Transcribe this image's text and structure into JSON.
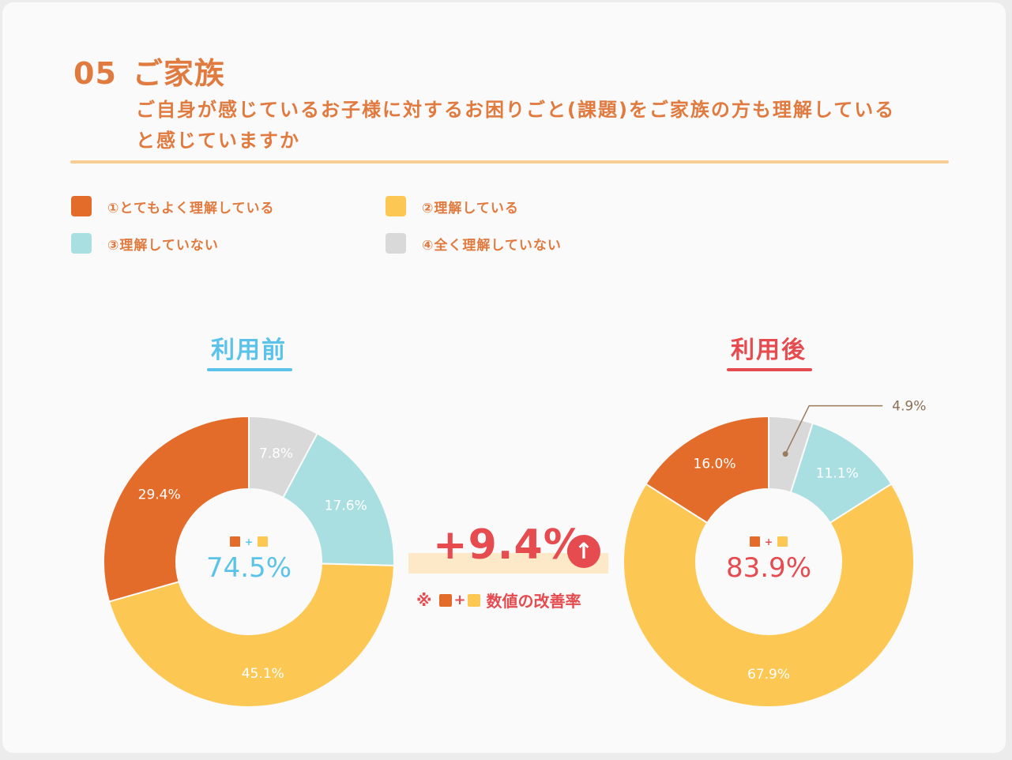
{
  "header": {
    "number": "05",
    "title": "ご家族",
    "question": "ご自身が感じているお子様に対するお困りごと(課題)をご家族の方も理解していると感じていますか"
  },
  "colors": {
    "accent_orange": "#e07a3f",
    "before": "#5bc3e9",
    "after": "#e54b4f"
  },
  "legend": [
    {
      "label": "①とてもよく理解している",
      "color": "#e36c2b"
    },
    {
      "label": "②理解している",
      "color": "#fcc853"
    },
    {
      "label": "③理解していない",
      "color": "#a9dfe0"
    },
    {
      "label": "④全く理解していない",
      "color": "#d9d9d9"
    }
  ],
  "chart_data": [
    {
      "type": "pie",
      "title": "利用前",
      "categories": [
        "①とてもよく理解している",
        "②理解している",
        "③理解していない",
        "④全く理解していない"
      ],
      "values": [
        29.4,
        45.1,
        17.6,
        7.8
      ],
      "value_labels": [
        "29.4%",
        "45.1%",
        "17.6%",
        "7.8%"
      ],
      "colors": [
        "#e36c2b",
        "#fcc853",
        "#a9dfe0",
        "#d9d9d9"
      ],
      "center_total": "74.5%",
      "center_color": "#5bc3e9"
    },
    {
      "type": "pie",
      "title": "利用後",
      "categories": [
        "①とてもよく理解している",
        "②理解している",
        "③理解していない",
        "④全く理解していない"
      ],
      "values": [
        16.0,
        67.9,
        11.1,
        4.9
      ],
      "value_labels": [
        "16.0%",
        "67.9%",
        "11.1%",
        "4.9%"
      ],
      "colors": [
        "#e36c2b",
        "#fcc853",
        "#a9dfe0",
        "#d9d9d9"
      ],
      "center_total": "83.9%",
      "center_color": "#e54b4f"
    }
  ],
  "improvement": {
    "value": "+9.4%",
    "arrow": "↑",
    "note_prefix": "※",
    "plus": "+",
    "note_text": "数値の改善率"
  }
}
